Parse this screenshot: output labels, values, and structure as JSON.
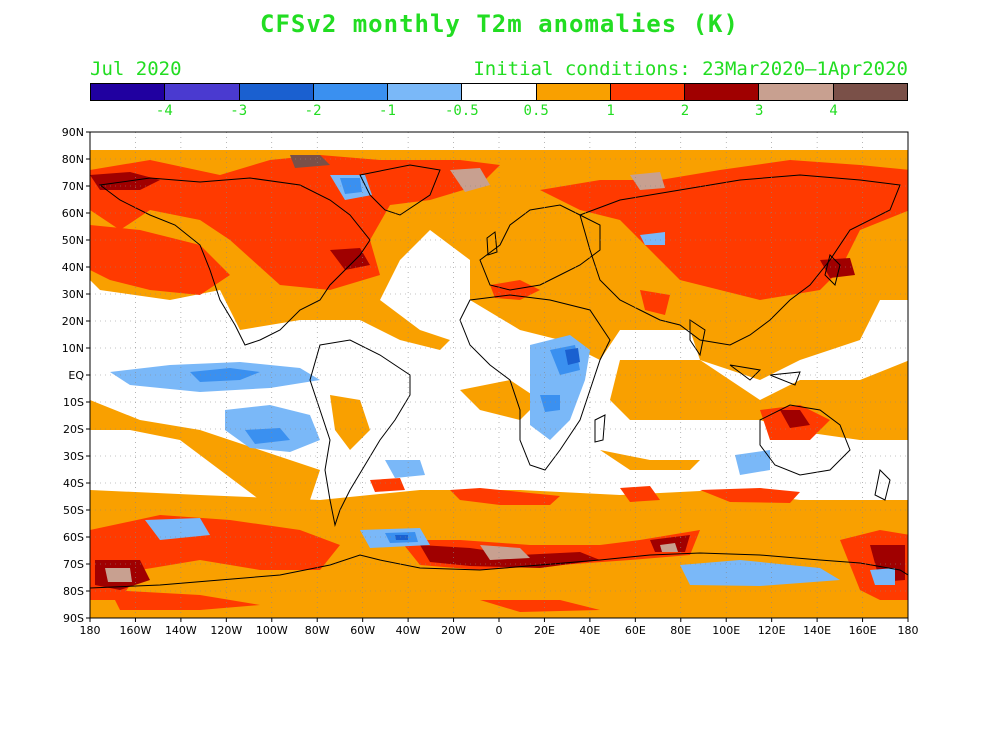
{
  "title": "CFSv2 monthly T2m anomalies (K)",
  "valid_month": "Jul 2020",
  "initial_conditions": "Initial conditions: 23Mar2020—1Apr2020",
  "legend": {
    "colors": [
      "#2000a0",
      "#4a3ad0",
      "#1a60d0",
      "#3a90f0",
      "#7ab8f8",
      "#ffffff",
      "#f9a000",
      "#ff3a00",
      "#a00000",
      "#c8a090",
      "#7a5048"
    ],
    "tick_labels": [
      "-4",
      "-3",
      "-2",
      "-1",
      "-0.5",
      "0.5",
      "1",
      "2",
      "3",
      "4"
    ]
  },
  "axes": {
    "lat_labels": [
      "90N",
      "80N",
      "70N",
      "60N",
      "50N",
      "40N",
      "30N",
      "20N",
      "10N",
      "EQ",
      "10S",
      "20S",
      "30S",
      "40S",
      "50S",
      "60S",
      "70S",
      "80S",
      "90S"
    ],
    "lon_labels": [
      "180",
      "160W",
      "140W",
      "120W",
      "100W",
      "80W",
      "60W",
      "40W",
      "20W",
      "0",
      "20E",
      "40E",
      "60E",
      "80E",
      "100E",
      "120E",
      "140E",
      "160E",
      "180"
    ]
  }
}
